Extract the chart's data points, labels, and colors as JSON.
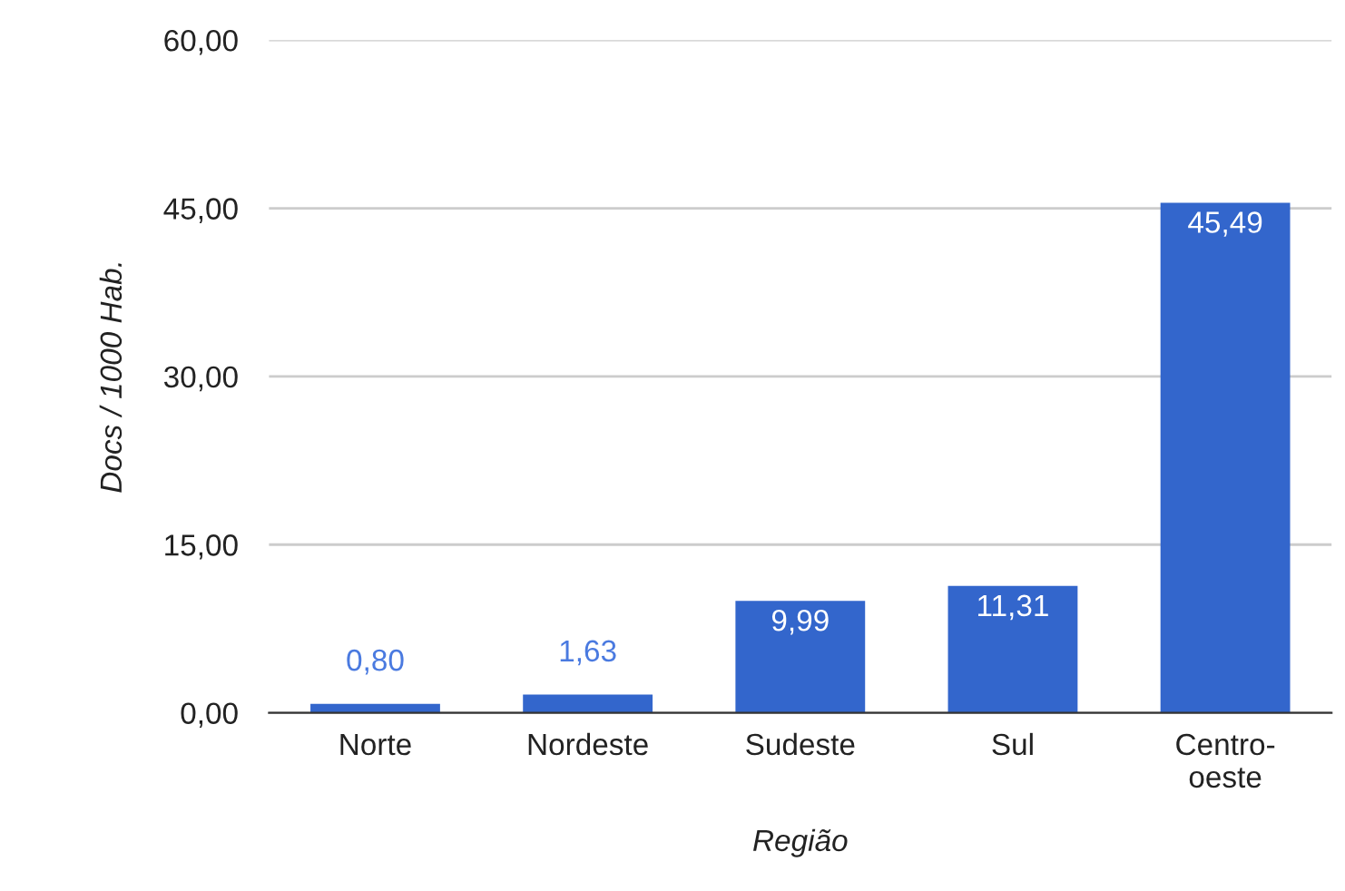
{
  "chart_data": {
    "type": "bar",
    "xlabel": "Região",
    "ylabel": "Docs / 1000 Hab.",
    "categories": [
      "Norte",
      "Nordeste",
      "Sudeste",
      "Sul",
      "Centro-oeste"
    ],
    "values": [
      0.8,
      1.63,
      9.99,
      11.31,
      45.49
    ],
    "value_labels": [
      "0,80",
      "1,63",
      "9,99",
      "11,31",
      "45,49"
    ],
    "color": "#3366cc",
    "ylim": [
      0,
      60
    ],
    "yticks": [
      {
        "value": 0,
        "label": "0,00"
      },
      {
        "value": 15,
        "label": "15,00"
      },
      {
        "value": 30,
        "label": "30,00"
      },
      {
        "value": 45,
        "label": "45,00"
      },
      {
        "value": 60,
        "label": "60,00"
      }
    ],
    "grid": "y",
    "legend": false
  }
}
